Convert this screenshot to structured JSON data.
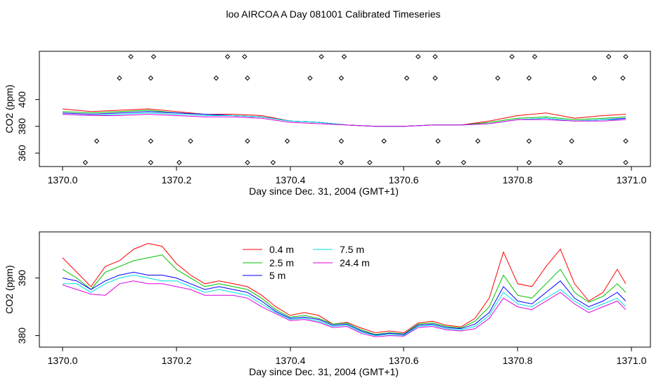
{
  "title": "loo AIRCOA A  Day 081001  Calibrated Timeseries",
  "colors": {
    "frame": "#000000",
    "s04": "#ff0000",
    "s25": "#00c000",
    "s5": "#0000ff",
    "s75": "#00e0e0",
    "s244": "#e000e0"
  },
  "chart_data": [
    {
      "type": "line",
      "xlabel": "Day since Dec. 31, 2004 (GMT+1)",
      "ylabel": "CO2 (ppm)",
      "xlim": [
        1370.0,
        1371.0
      ],
      "ylim": [
        350,
        436
      ],
      "xticks": [
        "1370.0",
        "1370.2",
        "1370.4",
        "1370.6",
        "1370.8",
        "1371.0"
      ],
      "yticks": [
        "360",
        "380",
        "400"
      ],
      "grid": false,
      "x": [
        1370.0,
        1370.05,
        1370.1,
        1370.15,
        1370.2,
        1370.25,
        1370.3,
        1370.35,
        1370.4,
        1370.45,
        1370.5,
        1370.55,
        1370.6,
        1370.65,
        1370.7,
        1370.75,
        1370.8,
        1370.85,
        1370.9,
        1370.95,
        1370.99
      ],
      "series": [
        {
          "values": [
            393,
            391,
            392,
            393,
            391,
            389,
            389,
            388,
            384,
            383,
            381,
            380,
            380,
            381,
            381,
            384,
            388,
            390,
            386,
            388,
            389
          ]
        },
        {
          "values": [
            391,
            390,
            391,
            392,
            390,
            389,
            388,
            387,
            384,
            383,
            381,
            380,
            380,
            381,
            381,
            383,
            386,
            387,
            385,
            386,
            387
          ]
        },
        {
          "values": [
            390,
            389,
            390,
            391,
            390,
            389,
            388,
            387,
            384,
            383,
            381,
            380,
            380,
            381,
            381,
            382,
            385,
            386,
            384,
            385,
            386
          ]
        },
        {
          "values": [
            389,
            388,
            389,
            390,
            389,
            388,
            388,
            387,
            384,
            383,
            381,
            380,
            380,
            381,
            381,
            382,
            385,
            386,
            384,
            385,
            385
          ]
        },
        {
          "values": [
            389,
            388,
            388,
            389,
            388,
            387,
            387,
            386,
            383,
            382,
            381,
            380,
            380,
            381,
            381,
            382,
            385,
            385,
            384,
            384,
            385
          ]
        }
      ],
      "markers": {
        "shape": "diamond",
        "rows": [
          {
            "y": 432,
            "x": [
              1370.12,
              1370.16,
              1370.29,
              1370.32,
              1370.455,
              1370.495,
              1370.625,
              1370.655,
              1370.79,
              1370.83,
              1370.96,
              1370.99
            ]
          },
          {
            "y": 416,
            "x": [
              1370.1,
              1370.155,
              1370.27,
              1370.325,
              1370.435,
              1370.49,
              1370.605,
              1370.655,
              1370.765,
              1370.82,
              1370.935,
              1370.985
            ]
          },
          {
            "y": 369,
            "x": [
              1370.06,
              1370.155,
              1370.225,
              1370.325,
              1370.395,
              1370.49,
              1370.565,
              1370.66,
              1370.73,
              1370.82,
              1370.895,
              1370.99
            ]
          },
          {
            "y": 353,
            "x": [
              1370.04,
              1370.155,
              1370.205,
              1370.325,
              1370.37,
              1370.49,
              1370.54,
              1370.66,
              1370.705,
              1370.82,
              1370.875,
              1370.99
            ]
          }
        ]
      }
    },
    {
      "type": "line",
      "xlabel": "Day since Dec. 31, 2004 (GMT+1)",
      "ylabel": "CO2 (ppm)",
      "xlim": [
        1370.0,
        1371.0
      ],
      "ylim": [
        378,
        398
      ],
      "xticks": [
        "1370.0",
        "1370.2",
        "1370.4",
        "1370.6",
        "1370.8",
        "1371.0"
      ],
      "yticks": [
        "380",
        "390"
      ],
      "grid": false,
      "legend_position": "top-center",
      "x": [
        1370.0,
        1370.025,
        1370.05,
        1370.075,
        1370.1,
        1370.125,
        1370.15,
        1370.175,
        1370.2,
        1370.225,
        1370.25,
        1370.275,
        1370.3,
        1370.325,
        1370.35,
        1370.375,
        1370.4,
        1370.425,
        1370.45,
        1370.475,
        1370.5,
        1370.525,
        1370.55,
        1370.575,
        1370.6,
        1370.625,
        1370.65,
        1370.675,
        1370.7,
        1370.725,
        1370.75,
        1370.775,
        1370.8,
        1370.825,
        1370.85,
        1370.875,
        1370.9,
        1370.925,
        1370.95,
        1370.975,
        1370.99
      ],
      "series": [
        {
          "name": "0.4 m",
          "values": [
            393.5,
            391.0,
            388.5,
            392.0,
            393.0,
            395.0,
            396.0,
            395.5,
            392.5,
            390.5,
            389.0,
            389.5,
            389.0,
            388.5,
            387.0,
            385.0,
            383.5,
            384.0,
            383.5,
            382.0,
            382.3,
            381.3,
            380.5,
            380.8,
            380.5,
            382.2,
            382.5,
            381.8,
            381.5,
            383.0,
            386.5,
            394.5,
            389.0,
            388.5,
            392.0,
            395.0,
            389.0,
            386.0,
            387.5,
            391.5,
            389.0
          ]
        },
        {
          "name": "2.5 m",
          "values": [
            391.5,
            390.0,
            388.0,
            391.0,
            392.0,
            393.0,
            393.5,
            394.0,
            391.5,
            390.0,
            388.5,
            389.0,
            388.5,
            388.0,
            386.5,
            384.5,
            383.2,
            383.5,
            383.0,
            382.0,
            382.2,
            381.0,
            380.2,
            380.5,
            380.3,
            382.0,
            382.2,
            381.6,
            381.3,
            382.5,
            385.0,
            390.5,
            387.0,
            386.5,
            389.0,
            391.5,
            387.5,
            385.8,
            386.8,
            389.0,
            387.5
          ]
        },
        {
          "name": "5 m",
          "values": [
            390.0,
            389.5,
            388.0,
            389.5,
            390.5,
            391.0,
            390.5,
            390.5,
            390.0,
            389.0,
            388.0,
            388.5,
            388.0,
            387.5,
            386.0,
            384.2,
            383.0,
            383.2,
            382.8,
            381.8,
            382.0,
            380.8,
            380.1,
            380.4,
            380.2,
            381.8,
            382.0,
            381.4,
            381.2,
            382.0,
            384.0,
            388.5,
            386.0,
            385.5,
            387.5,
            389.5,
            386.5,
            385.0,
            386.0,
            387.5,
            386.0
          ]
        },
        {
          "name": "7.5 m",
          "values": [
            389.0,
            389.0,
            387.5,
            389.0,
            390.0,
            390.5,
            390.0,
            389.5,
            389.5,
            388.5,
            387.5,
            388.0,
            387.5,
            387.0,
            385.5,
            384.0,
            382.8,
            383.0,
            382.5,
            381.6,
            381.8,
            380.6,
            380.0,
            380.2,
            380.0,
            381.6,
            381.8,
            381.2,
            381.0,
            381.6,
            383.5,
            387.5,
            385.5,
            385.0,
            386.5,
            388.0,
            386.0,
            384.5,
            385.5,
            386.5,
            385.0
          ]
        },
        {
          "name": "24.4 m",
          "values": [
            388.8,
            388.0,
            387.2,
            387.0,
            389.0,
            389.5,
            389.0,
            389.0,
            388.5,
            388.0,
            387.0,
            387.0,
            387.0,
            386.5,
            385.0,
            383.8,
            382.6,
            382.8,
            382.3,
            381.4,
            381.6,
            380.4,
            379.8,
            380.0,
            379.9,
            381.4,
            381.6,
            381.0,
            380.8,
            381.2,
            383.0,
            386.5,
            385.0,
            384.5,
            386.0,
            387.5,
            385.5,
            384.0,
            385.0,
            386.0,
            384.5
          ]
        }
      ]
    }
  ]
}
